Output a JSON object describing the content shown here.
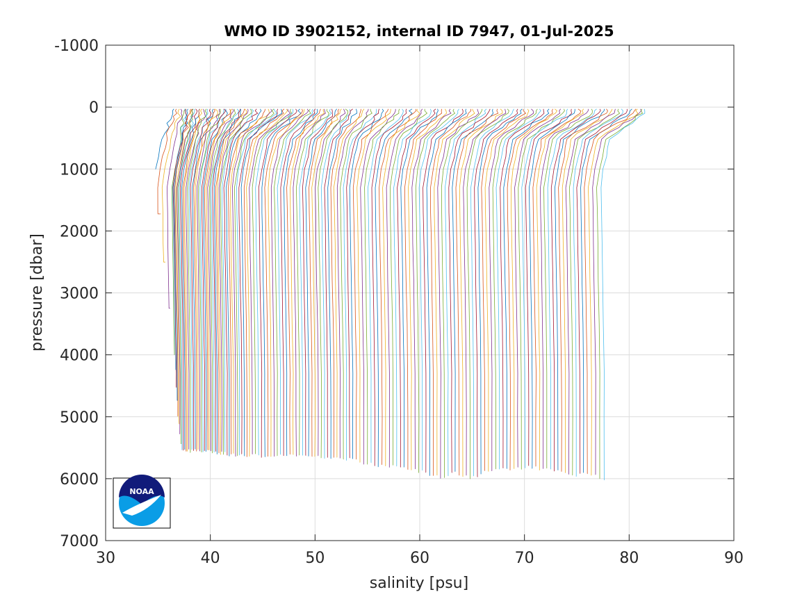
{
  "chart_data": {
    "type": "line",
    "title": "WMO ID 3902152, internal ID 7947, 01-Jul-2025",
    "xlabel": "salinity [psu]",
    "ylabel": "pressure [dbar]",
    "xlim": [
      30,
      90
    ],
    "ylim": [
      -1000,
      7000
    ],
    "y_reversed": true,
    "grid": true,
    "x_ticks": [
      "30",
      "40",
      "50",
      "60",
      "70",
      "80",
      "90"
    ],
    "y_ticks": [
      "-1000",
      "0",
      "1000",
      "2000",
      "3000",
      "4000",
      "5000",
      "6000",
      "7000"
    ],
    "logo_text": "NOAA",
    "series_colors": [
      "#0072bd",
      "#d95319",
      "#edb120",
      "#7e2f8e",
      "#77ac30",
      "#4dbeee",
      "#a2142f"
    ],
    "profiles_note": "Waterfall of successive salinity profiles, each offset horizontally; surface ~0 dbar, deep values listed per profile.",
    "series": [
      {
        "surface_x": 36.5,
        "deep_x": 34.8,
        "max_p": 1000
      },
      {
        "surface_x": 37.5,
        "deep_x": 36.6,
        "max_p": 4000
      },
      {
        "surface_x": 38.0,
        "deep_x": 36.9,
        "max_p": 5000
      },
      {
        "surface_x": 38.5,
        "deep_x": 37.3,
        "max_p": 5550
      },
      {
        "surface_x": 39.2,
        "deep_x": 37.8,
        "max_p": 5550
      },
      {
        "surface_x": 40.0,
        "deep_x": 38.4,
        "max_p": 5550
      },
      {
        "surface_x": 40.8,
        "deep_x": 39.0,
        "max_p": 5550
      },
      {
        "surface_x": 41.6,
        "deep_x": 39.6,
        "max_p": 5560
      },
      {
        "surface_x": 42.4,
        "deep_x": 40.2,
        "max_p": 5560
      },
      {
        "surface_x": 43.2,
        "deep_x": 40.8,
        "max_p": 5580
      },
      {
        "surface_x": 44.0,
        "deep_x": 41.4,
        "max_p": 5600
      },
      {
        "surface_x": 45.5,
        "deep_x": 42.2,
        "max_p": 5620
      },
      {
        "surface_x": 46.5,
        "deep_x": 43.0,
        "max_p": 5620
      },
      {
        "surface_x": 47.5,
        "deep_x": 44.0,
        "max_p": 5620
      },
      {
        "surface_x": 48.5,
        "deep_x": 45.2,
        "max_p": 5630
      },
      {
        "surface_x": 49.5,
        "deep_x": 46.4,
        "max_p": 5630
      },
      {
        "surface_x": 50.5,
        "deep_x": 47.6,
        "max_p": 5630
      },
      {
        "surface_x": 51.5,
        "deep_x": 48.8,
        "max_p": 5640
      },
      {
        "surface_x": 52.5,
        "deep_x": 50.0,
        "max_p": 5640
      },
      {
        "surface_x": 53.5,
        "deep_x": 51.2,
        "max_p": 5650
      },
      {
        "surface_x": 55.0,
        "deep_x": 52.4,
        "max_p": 5680
      },
      {
        "surface_x": 56.5,
        "deep_x": 53.6,
        "max_p": 5700
      },
      {
        "surface_x": 58.0,
        "deep_x": 55.0,
        "max_p": 5750
      },
      {
        "surface_x": 59.5,
        "deep_x": 56.4,
        "max_p": 5800
      },
      {
        "surface_x": 61.0,
        "deep_x": 57.8,
        "max_p": 5800
      },
      {
        "surface_x": 62.5,
        "deep_x": 59.2,
        "max_p": 5850
      },
      {
        "surface_x": 64.0,
        "deep_x": 60.6,
        "max_p": 5900
      },
      {
        "surface_x": 65.5,
        "deep_x": 62.0,
        "max_p": 6000
      },
      {
        "surface_x": 67.0,
        "deep_x": 63.4,
        "max_p": 5900
      },
      {
        "surface_x": 68.5,
        "deep_x": 64.8,
        "max_p": 6000
      },
      {
        "surface_x": 70.0,
        "deep_x": 66.2,
        "max_p": 5900
      },
      {
        "surface_x": 71.5,
        "deep_x": 67.6,
        "max_p": 5850
      },
      {
        "surface_x": 73.0,
        "deep_x": 69.0,
        "max_p": 5850
      },
      {
        "surface_x": 74.5,
        "deep_x": 70.4,
        "max_p": 5800
      },
      {
        "surface_x": 76.0,
        "deep_x": 71.8,
        "max_p": 5850
      },
      {
        "surface_x": 77.5,
        "deep_x": 73.2,
        "max_p": 5850
      },
      {
        "surface_x": 79.0,
        "deep_x": 74.6,
        "max_p": 5950
      },
      {
        "surface_x": 80.5,
        "deep_x": 76.0,
        "max_p": 5900
      },
      {
        "surface_x": 81.5,
        "deep_x": 77.6,
        "max_p": 6000
      }
    ]
  }
}
